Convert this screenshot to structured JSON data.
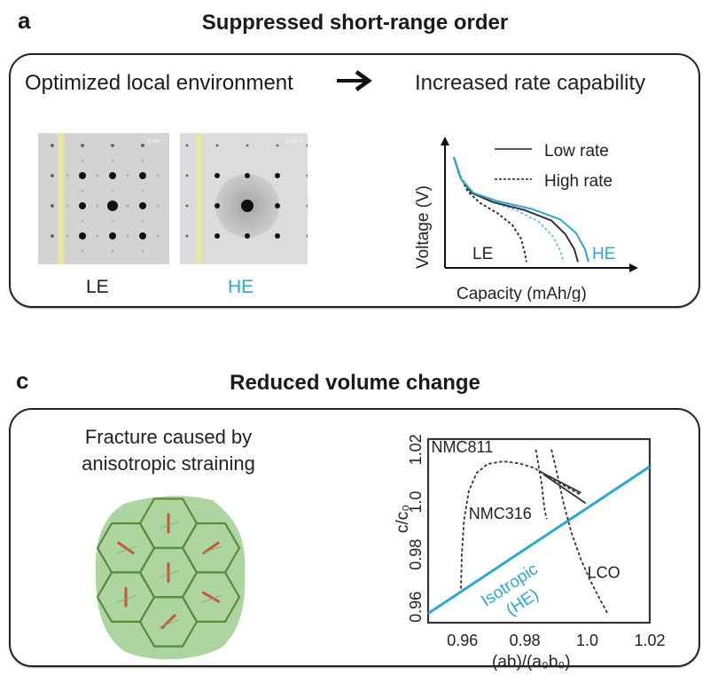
{
  "panel_a": {
    "letter": "a",
    "title": "Suppressed short-range order",
    "left_caption": "Optimized local environment",
    "arrow_icon": "right-arrow-icon",
    "right_caption": "Increased rate capability",
    "images": [
      {
        "label": "LE",
        "label_color": "#1a1a1a",
        "scale_text": "5 nm⁻¹"
      },
      {
        "label": "HE",
        "label_color": "#2aa7d6",
        "scale_text": "5 nm⁻¹"
      }
    ],
    "chart_data": {
      "type": "line",
      "title": "",
      "xlabel": "Capacity (mAh/g)",
      "ylabel": "Voltage (V)",
      "legend": [
        {
          "name": "Low rate",
          "style": "solid"
        },
        {
          "name": "High rate",
          "style": "dashed"
        }
      ],
      "legend_position": "top-right",
      "annotations": [
        {
          "text": "LE",
          "color": "#1a1a1a"
        },
        {
          "text": "HE",
          "color": "#2aa7d6"
        }
      ],
      "series": [
        {
          "name": "LE high rate",
          "style": "dashed",
          "color": "#333333",
          "x": [
            0.0,
            0.03,
            0.08,
            0.15,
            0.25,
            0.33,
            0.38,
            0.4,
            0.41
          ],
          "y": [
            0.93,
            0.78,
            0.63,
            0.53,
            0.44,
            0.34,
            0.22,
            0.1,
            0.02
          ]
        },
        {
          "name": "HE high rate",
          "style": "dashed",
          "color": "#6fc4e3",
          "x": [
            0.0,
            0.04,
            0.1,
            0.2,
            0.35,
            0.48,
            0.56,
            0.6,
            0.62
          ],
          "y": [
            0.93,
            0.76,
            0.63,
            0.55,
            0.47,
            0.37,
            0.24,
            0.12,
            0.02
          ]
        },
        {
          "name": "LE low rate",
          "style": "solid",
          "color": "#333333",
          "x": [
            0.0,
            0.04,
            0.1,
            0.22,
            0.4,
            0.55,
            0.63,
            0.68,
            0.7
          ],
          "y": [
            0.93,
            0.74,
            0.62,
            0.54,
            0.47,
            0.38,
            0.26,
            0.13,
            0.02
          ]
        },
        {
          "name": "HE low rate",
          "style": "solid",
          "color": "#2aa7d6",
          "x": [
            0.0,
            0.04,
            0.11,
            0.24,
            0.44,
            0.6,
            0.69,
            0.74,
            0.76
          ],
          "y": [
            0.93,
            0.74,
            0.62,
            0.55,
            0.48,
            0.39,
            0.27,
            0.13,
            0.02
          ]
        }
      ],
      "xlim": [
        0,
        1
      ],
      "ylim": [
        0,
        1
      ],
      "ticks": "none",
      "grid": false
    }
  },
  "panel_c": {
    "letter": "c",
    "title": "Reduced volume change",
    "illustration_caption_line1": "Fracture caused by",
    "illustration_caption_line2": "anisotropic straining",
    "illustration_icon": "polycrystal-hexagon-grains-icon",
    "chart_data": {
      "type": "line",
      "title": "",
      "xlabel": "(ab)/(a₀b₀)",
      "ylabel": "c/c₀",
      "xlim": [
        0.949,
        1.02
      ],
      "ylim": [
        0.954,
        1.024
      ],
      "xticks": [
        0.96,
        0.98,
        1.0,
        1.02
      ],
      "xtick_labels": [
        "0.96",
        "0.98",
        "1.0",
        "1.02"
      ],
      "yticks": [
        0.96,
        0.98,
        1.0,
        1.02
      ],
      "ytick_labels": [
        "0.96",
        "0.98",
        "1.0",
        "1.02"
      ],
      "grid": false,
      "series": [
        {
          "name": "Isotropic (HE)",
          "label_line1": "Isotropic",
          "label_line2": "(HE)",
          "style": "solid",
          "color": "#2aa7d6",
          "x": [
            0.949,
            1.02
          ],
          "y": [
            0.9575,
            1.0135
          ]
        },
        {
          "name": "NMC811",
          "style": "dashed",
          "color": "#333333",
          "x": [
            0.9595,
            0.9598,
            0.9605,
            0.962,
            0.9645,
            0.968,
            0.973,
            0.978,
            0.983,
            0.988,
            0.993,
            0.9975
          ],
          "y": [
            0.967,
            0.98,
            0.993,
            1.004,
            1.011,
            1.0145,
            1.0155,
            1.0148,
            1.013,
            1.0095,
            1.006,
            1.003
          ]
        },
        {
          "name": "NMC316",
          "style": "dashed",
          "color": "#333333",
          "x": [
            0.9835,
            0.9845,
            0.9855,
            0.986,
            0.9865,
            0.987
          ],
          "y": [
            1.02,
            1.013,
            1.006,
            1.0,
            0.996,
            0.9935
          ]
        },
        {
          "name": "LCO",
          "style": "dashed",
          "color": "#333333",
          "x": [
            0.9885,
            0.9905,
            0.9925,
            0.995,
            0.998,
            1.001,
            1.004,
            1.0065
          ],
          "y": [
            1.02,
            1.01,
            0.999,
            0.988,
            0.978,
            0.97,
            0.963,
            0.9575
          ]
        },
        {
          "name": "NMC316 trend",
          "style": "solid",
          "color": "#333333",
          "x": [
            0.985,
            0.998
          ],
          "y": [
            1.0115,
            1.0035
          ]
        },
        {
          "name": "NMC811 trend",
          "style": "solid",
          "color": "#333333",
          "x": [
            0.986,
            0.9995
          ],
          "y": [
            1.0105,
            0.9995
          ]
        }
      ],
      "annotations": [
        {
          "text": "NMC811",
          "x": 0.95,
          "y": 1.019
        },
        {
          "text": "NMC316",
          "x": 0.962,
          "y": 0.9935
        },
        {
          "text": "LCO",
          "x": 1.0,
          "y": 0.971
        }
      ]
    }
  }
}
